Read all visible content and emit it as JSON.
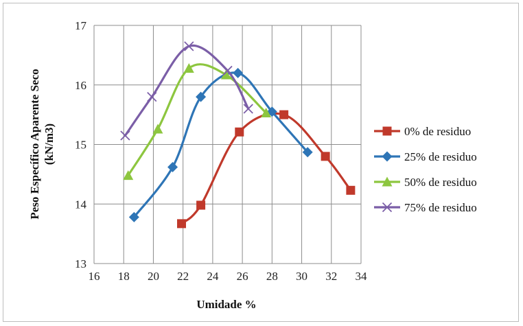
{
  "chart_data": {
    "type": "line",
    "xlabel": "Umidade %",
    "ylabel_line1": "Peso Específico Aparente Seco",
    "ylabel_line2": "(kN/m3)",
    "xlim": [
      16,
      34
    ],
    "ylim": [
      13,
      17
    ],
    "xticks": [
      16,
      18,
      20,
      22,
      24,
      26,
      28,
      30,
      32,
      34
    ],
    "yticks": [
      13,
      14,
      15,
      16,
      17
    ],
    "grid": true,
    "legend_position": "right",
    "series": [
      {
        "name": "0% de residuo",
        "color": "#c0392b",
        "marker": "square",
        "x": [
          21.9,
          23.2,
          25.8,
          28.8,
          31.6,
          33.3
        ],
        "y": [
          13.67,
          13.98,
          15.21,
          15.5,
          14.8,
          14.23
        ]
      },
      {
        "name": "25% de residuo",
        "color": "#2e75b6",
        "marker": "diamond",
        "x": [
          18.7,
          21.3,
          23.2,
          25.7,
          28.0,
          30.4
        ],
        "y": [
          13.78,
          14.62,
          15.8,
          16.2,
          15.55,
          14.87
        ]
      },
      {
        "name": "50% de residuo",
        "color": "#8dc63f",
        "marker": "triangle",
        "x": [
          18.3,
          20.3,
          22.4,
          24.9,
          27.6
        ],
        "y": [
          14.48,
          15.26,
          16.28,
          16.17,
          15.53
        ]
      },
      {
        "name": "75% de residuo",
        "color": "#7b5ea7",
        "marker": "x",
        "x": [
          18.1,
          19.9,
          22.4,
          25.0,
          26.4
        ],
        "y": [
          15.15,
          15.8,
          16.65,
          16.24,
          15.6
        ]
      }
    ]
  }
}
